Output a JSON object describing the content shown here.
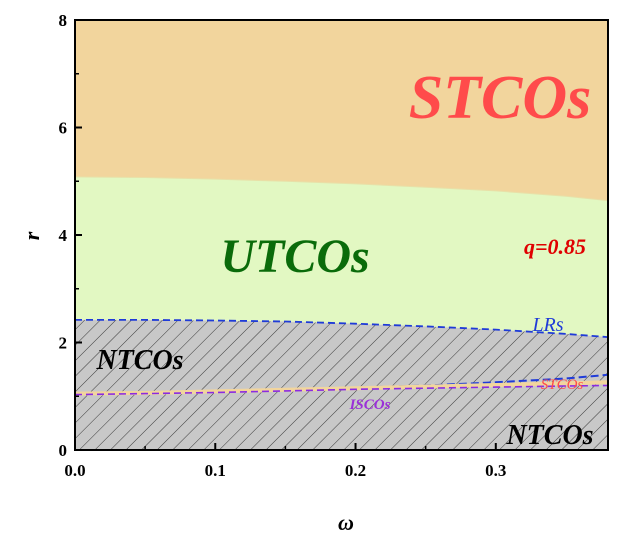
{
  "chart_data": {
    "type": "area",
    "title": "",
    "xlabel": "ω",
    "ylabel": "r",
    "xlim": [
      0.0,
      0.38
    ],
    "ylim": [
      0,
      8
    ],
    "xticks": [
      "0.0",
      "0.1",
      "0.2",
      "0.3"
    ],
    "yticks": [
      "0",
      "2",
      "4",
      "6",
      "8"
    ],
    "annotation": "q=0.85",
    "regions": [
      {
        "name": "STCOs",
        "color": "#f2d59d"
      },
      {
        "name": "UTCOs",
        "color": "#e2f8c2"
      },
      {
        "name": "NTCOs",
        "color": "#c8c8c8"
      }
    ],
    "region_labels": {
      "stcos": "STCOs",
      "utcos": "UTCOs",
      "ntcos_upper": "NTCOs",
      "ntcos_lower": "NTCOs"
    },
    "series": [
      {
        "name": "UTCO/STCO boundary",
        "x": [
          0.0,
          0.05,
          0.1,
          0.15,
          0.2,
          0.25,
          0.3,
          0.35,
          0.38
        ],
        "y": [
          5.08,
          5.07,
          5.04,
          5.0,
          4.95,
          4.89,
          4.82,
          4.72,
          4.64
        ]
      },
      {
        "name": "LRs",
        "color": "#1f3bd8",
        "x": [
          0.0,
          0.05,
          0.1,
          0.15,
          0.2,
          0.25,
          0.3,
          0.35,
          0.38
        ],
        "y": [
          2.42,
          2.42,
          2.41,
          2.39,
          2.35,
          2.3,
          2.24,
          2.16,
          2.1
        ]
      },
      {
        "name": "STCOs",
        "color": "#f2d59d",
        "x": [
          0.0,
          0.05,
          0.1,
          0.15,
          0.2,
          0.25,
          0.3,
          0.35,
          0.38
        ],
        "y": [
          1.05,
          1.06,
          1.09,
          1.12,
          1.15,
          1.18,
          1.21,
          1.24,
          1.26
        ]
      },
      {
        "name": "ISCOs",
        "color": "#8a2be2",
        "x": [
          0.0,
          0.05,
          0.1,
          0.15,
          0.2,
          0.25,
          0.3,
          0.35,
          0.38
        ],
        "y": [
          1.03,
          1.05,
          1.07,
          1.1,
          1.13,
          1.15,
          1.17,
          1.19,
          1.2
        ]
      },
      {
        "name": "inner boundary",
        "color": "#1f3bd8",
        "x": [
          0.0,
          0.05,
          0.1,
          0.15,
          0.2,
          0.25,
          0.3,
          0.35,
          0.38
        ],
        "y": [
          1.03,
          1.06,
          1.09,
          1.12,
          1.16,
          1.2,
          1.26,
          1.33,
          1.4
        ]
      }
    ],
    "curve_labels": {
      "lrs": "LRs",
      "stcos": "STCOs",
      "iscos": "ISCOs"
    }
  }
}
